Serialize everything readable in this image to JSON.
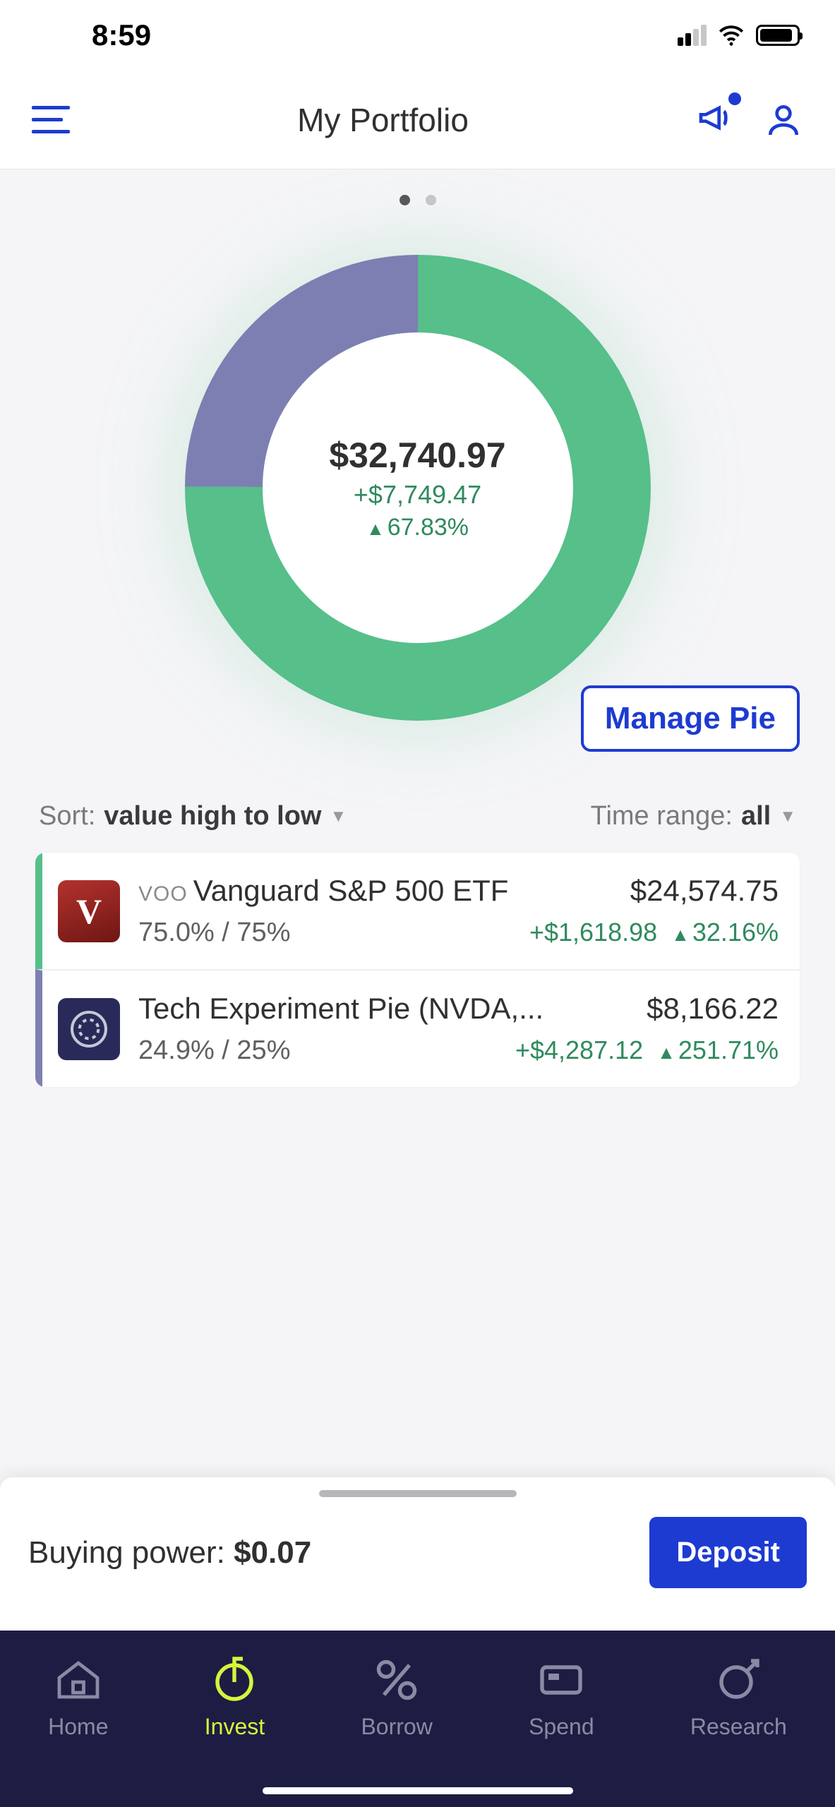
{
  "status": {
    "time": "8:59"
  },
  "header": {
    "title": "My Portfolio"
  },
  "donut": {
    "type": "donut",
    "slices": [
      {
        "id": "voo",
        "label": "VOO",
        "value": 75.0,
        "color": "#56bf8a"
      },
      {
        "id": "tech",
        "label": "Tech",
        "value": 24.9,
        "color": "#7d7fb2"
      }
    ],
    "background_color": "#f5f5f7",
    "center_bg": "#ffffff",
    "stroke_width": 110
  },
  "portfolio": {
    "total": "$32,740.97",
    "gain_dollar": "+$7,749.47",
    "gain_pct": "67.83%"
  },
  "buttons": {
    "manage_pie": "Manage Pie",
    "deposit": "Deposit"
  },
  "sort": {
    "label": "Sort:",
    "value": "value high to low"
  },
  "time_range": {
    "label": "Time range:",
    "value": "all"
  },
  "holdings": [
    {
      "ticker": "VOO",
      "name": "Vanguard S&P 500 ETF",
      "icon_type": "voo",
      "icon_letter": "V",
      "border_color": "#56bf8a",
      "alloc_actual": "75.0%",
      "alloc_target": "75%",
      "value": "$24,574.75",
      "gain_dollar": "+$1,618.98",
      "gain_pct": "32.16%"
    },
    {
      "ticker": "",
      "name": "Tech Experiment Pie (NVDA,...",
      "icon_type": "tech",
      "icon_letter": "",
      "border_color": "#7d7fb2",
      "alloc_actual": "24.9%",
      "alloc_target": "25%",
      "value": "$8,166.22",
      "gain_dollar": "+$4,287.12",
      "gain_pct": "251.71%"
    }
  ],
  "buying_power": {
    "label": "Buying power:",
    "value": "$0.07"
  },
  "nav": {
    "items": [
      {
        "id": "home",
        "label": "Home",
        "active": false
      },
      {
        "id": "invest",
        "label": "Invest",
        "active": true
      },
      {
        "id": "borrow",
        "label": "Borrow",
        "active": false
      },
      {
        "id": "spend",
        "label": "Spend",
        "active": false
      },
      {
        "id": "research",
        "label": "Research",
        "active": false
      }
    ]
  },
  "colors": {
    "primary": "#1d3bd1",
    "positive": "#2f8a5e",
    "nav_bg": "#1d1d44",
    "nav_active": "#d7f43c",
    "text": "#303033",
    "muted": "#7a7a7d"
  }
}
